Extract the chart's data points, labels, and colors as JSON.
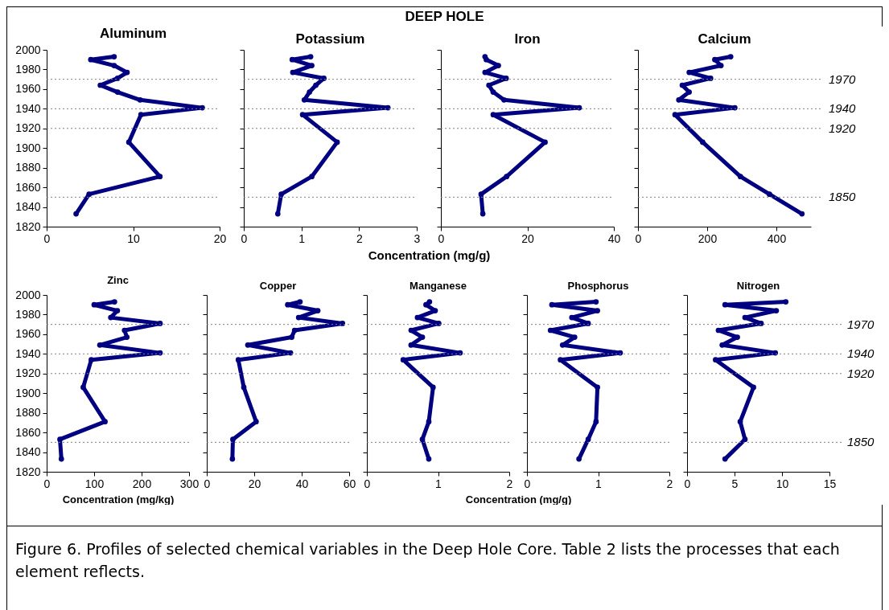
{
  "chart_data": [
    {
      "type": "line",
      "title": "Aluminum",
      "annotations": [
        "DEEP HOLE"
      ],
      "x": [
        7.8,
        5.1,
        7.8,
        9.3,
        8.2,
        6.2,
        8.2,
        10.8,
        18,
        10.9,
        9.5,
        13.1,
        4.9,
        3.4
      ],
      "values": [
        1993,
        1990,
        1984,
        1977,
        1971,
        1964,
        1957,
        1949,
        1941,
        1934,
        1906,
        1871,
        1853,
        1833
      ],
      "color": "#000080",
      "marker": "circle",
      "xlim": [
        0,
        20
      ],
      "xticks": [
        0,
        10,
        20
      ],
      "ylim": [
        1820,
        2000
      ],
      "yticks": [
        1820,
        1840,
        1860,
        1880,
        1900,
        1920,
        1940,
        1960,
        1980,
        2000
      ],
      "ref_lines": [
        {
          "axis": "y",
          "value": 1970,
          "color": "#808080",
          "line_style": "dotted"
        },
        {
          "axis": "y",
          "value": 1940,
          "color": "#808080",
          "line_style": "dotted"
        },
        {
          "axis": "y",
          "value": 1920,
          "color": "#808080",
          "line_style": "dotted"
        },
        {
          "axis": "y",
          "value": 1850,
          "color": "#808080",
          "line_style": "dotted"
        }
      ]
    },
    {
      "type": "line",
      "title": "Potassium",
      "xlabel": "Concentration (mg/g)",
      "x": [
        1.16,
        0.84,
        1.18,
        0.85,
        1.39,
        1.25,
        1.14,
        1.05,
        2.5,
        1.02,
        1.62,
        1.18,
        0.65,
        0.59
      ],
      "values": [
        1993,
        1990,
        1984,
        1977,
        1971,
        1964,
        1957,
        1949,
        1941,
        1934,
        1906,
        1871,
        1853,
        1833
      ],
      "color": "#000080",
      "marker": "circle",
      "xlim": [
        0,
        3
      ],
      "xticks": [
        0,
        1,
        2,
        3
      ],
      "ylim": [
        1820,
        2000
      ],
      "yticks": [
        1820,
        1840,
        1860,
        1880,
        1900,
        1920,
        1940,
        1960,
        1980,
        2000
      ],
      "tick_labels": "x",
      "ref_lines": [
        {
          "axis": "y",
          "value": 1970,
          "color": "#808080",
          "line_style": "dotted"
        },
        {
          "axis": "y",
          "value": 1940,
          "color": "#808080",
          "line_style": "dotted"
        },
        {
          "axis": "y",
          "value": 1920,
          "color": "#808080",
          "line_style": "dotted"
        },
        {
          "axis": "y",
          "value": 1850,
          "color": "#808080",
          "line_style": "dotted"
        }
      ]
    },
    {
      "type": "line",
      "title": "Iron",
      "x": [
        10.2,
        10.5,
        13.3,
        10.2,
        15.1,
        11.1,
        12.1,
        14.6,
        32,
        12.1,
        24.1,
        15.2,
        9.3,
        9.7
      ],
      "values": [
        1993,
        1990,
        1984,
        1977,
        1971,
        1964,
        1957,
        1949,
        1941,
        1934,
        1906,
        1871,
        1853,
        1833
      ],
      "color": "#000080",
      "marker": "circle",
      "xlim": [
        0,
        40
      ],
      "xticks": [
        0,
        20,
        40
      ],
      "ylim": [
        1820,
        2000
      ],
      "yticks": [
        1820,
        1840,
        1860,
        1880,
        1900,
        1920,
        1940,
        1960,
        1980,
        2000
      ],
      "tick_labels": "x",
      "ref_lines": [
        {
          "axis": "y",
          "value": 1970,
          "color": "#808080",
          "line_style": "dotted"
        },
        {
          "axis": "y",
          "value": 1940,
          "color": "#808080",
          "line_style": "dotted"
        },
        {
          "axis": "y",
          "value": 1920,
          "color": "#808080",
          "line_style": "dotted"
        },
        {
          "axis": "y",
          "value": 1850,
          "color": "#808080",
          "line_style": "dotted"
        }
      ]
    },
    {
      "type": "line",
      "title": "Calcium",
      "x": [
        268,
        222,
        240,
        148,
        210,
        128,
        148,
        118,
        280,
        107,
        187,
        296,
        380,
        474
      ],
      "values": [
        1993,
        1990,
        1984,
        1977,
        1971,
        1964,
        1957,
        1949,
        1941,
        1934,
        1906,
        1871,
        1853,
        1833
      ],
      "color": "#000080",
      "marker": "circle",
      "xlim": [
        0,
        500
      ],
      "xticks": [
        0,
        200,
        400
      ],
      "ylim": [
        1820,
        2000
      ],
      "yticks": [
        1820,
        1840,
        1860,
        1880,
        1900,
        1920,
        1940,
        1960,
        1980,
        2000
      ],
      "tick_labels": "x",
      "ref_lines": [
        {
          "axis": "y",
          "value": 1970,
          "label": "1970",
          "color": "#808080",
          "line_style": "dotted"
        },
        {
          "axis": "y",
          "value": 1940,
          "label": "1940",
          "color": "#808080",
          "line_style": "dotted"
        },
        {
          "axis": "y",
          "value": 1920,
          "label": "1920",
          "color": "#808080",
          "line_style": "dotted"
        },
        {
          "axis": "y",
          "value": 1850,
          "label": "1850",
          "color": "#808080",
          "line_style": "dotted"
        }
      ]
    },
    {
      "type": "line",
      "title": "Zinc",
      "xlabel": "Concentration (mg/kg)",
      "x": [
        143,
        100,
        149,
        135,
        239,
        164,
        169,
        112,
        239,
        94,
        77,
        123,
        28,
        31
      ],
      "values": [
        1993,
        1990,
        1984,
        1977,
        1971,
        1964,
        1957,
        1949,
        1941,
        1934,
        1906,
        1871,
        1853,
        1833
      ],
      "color": "#000080",
      "marker": "circle",
      "xlim": [
        0,
        300
      ],
      "xticks": [
        0,
        100,
        200,
        300
      ],
      "ylim": [
        1820,
        2000
      ],
      "yticks": [
        1820,
        1840,
        1860,
        1880,
        1900,
        1920,
        1940,
        1960,
        1980,
        2000
      ],
      "ref_lines": [
        {
          "axis": "y",
          "value": 1970,
          "color": "#808080",
          "line_style": "dotted"
        },
        {
          "axis": "y",
          "value": 1940,
          "color": "#808080",
          "line_style": "dotted"
        },
        {
          "axis": "y",
          "value": 1920,
          "color": "#808080",
          "line_style": "dotted"
        },
        {
          "axis": "y",
          "value": 1850,
          "color": "#808080",
          "line_style": "dotted"
        }
      ]
    },
    {
      "type": "line",
      "title": "Copper",
      "x": [
        39.3,
        34.1,
        46.8,
        38.7,
        57.2,
        37,
        35.8,
        17.3,
        35.3,
        13.3,
        15.6,
        20.8,
        11,
        10.8
      ],
      "values": [
        1993,
        1990,
        1984,
        1977,
        1971,
        1964,
        1957,
        1949,
        1941,
        1934,
        1906,
        1871,
        1853,
        1833
      ],
      "color": "#000080",
      "marker": "circle",
      "xlim": [
        0,
        60
      ],
      "xticks": [
        0,
        20,
        40,
        60
      ],
      "ylim": [
        1820,
        2000
      ],
      "yticks": [
        1820,
        1840,
        1860,
        1880,
        1900,
        1920,
        1940,
        1960,
        1980,
        2000
      ],
      "tick_labels": "x",
      "ref_lines": [
        {
          "axis": "y",
          "value": 1970,
          "color": "#808080",
          "line_style": "dotted"
        },
        {
          "axis": "y",
          "value": 1940,
          "color": "#808080",
          "line_style": "dotted"
        },
        {
          "axis": "y",
          "value": 1920,
          "color": "#808080",
          "line_style": "dotted"
        },
        {
          "axis": "y",
          "value": 1850,
          "color": "#808080",
          "line_style": "dotted"
        }
      ]
    },
    {
      "type": "line",
      "title": "Manganese",
      "xlabel": "Concentration (mg/g)",
      "x": [
        0.88,
        0.83,
        0.96,
        0.71,
        1.01,
        0.62,
        0.78,
        0.62,
        1.31,
        0.51,
        0.93,
        0.87,
        0.78,
        0.87
      ],
      "values": [
        1993,
        1990,
        1984,
        1977,
        1971,
        1964,
        1957,
        1949,
        1941,
        1934,
        1906,
        1871,
        1853,
        1833
      ],
      "color": "#000080",
      "marker": "circle",
      "xlim": [
        0,
        2
      ],
      "xticks": [
        0,
        1,
        2
      ],
      "ylim": [
        1820,
        2000
      ],
      "yticks": [
        1820,
        1840,
        1860,
        1880,
        1900,
        1920,
        1940,
        1960,
        1980,
        2000
      ],
      "tick_labels": "x",
      "ref_lines": [
        {
          "axis": "y",
          "value": 1970,
          "color": "#808080",
          "line_style": "dotted"
        },
        {
          "axis": "y",
          "value": 1940,
          "color": "#808080",
          "line_style": "dotted"
        },
        {
          "axis": "y",
          "value": 1920,
          "color": "#808080",
          "line_style": "dotted"
        },
        {
          "axis": "y",
          "value": 1850,
          "color": "#808080",
          "line_style": "dotted"
        }
      ]
    },
    {
      "type": "line",
      "title": "Phosphorus",
      "x": [
        0.97,
        0.35,
        0.99,
        0.63,
        0.86,
        0.33,
        0.67,
        0.5,
        1.31,
        0.47,
        0.99,
        0.97,
        0.86,
        0.73
      ],
      "values": [
        1993,
        1990,
        1984,
        1977,
        1971,
        1964,
        1957,
        1949,
        1941,
        1934,
        1906,
        1871,
        1853,
        1833
      ],
      "color": "#000080",
      "marker": "circle",
      "xlim": [
        0,
        2
      ],
      "xticks": [
        0,
        1,
        2
      ],
      "ylim": [
        1820,
        2000
      ],
      "yticks": [
        1820,
        1840,
        1860,
        1880,
        1900,
        1920,
        1940,
        1960,
        1980,
        2000
      ],
      "tick_labels": "x",
      "ref_lines": [
        {
          "axis": "y",
          "value": 1970,
          "color": "#808080",
          "line_style": "dotted"
        },
        {
          "axis": "y",
          "value": 1940,
          "color": "#808080",
          "line_style": "dotted"
        },
        {
          "axis": "y",
          "value": 1920,
          "color": "#808080",
          "line_style": "dotted"
        },
        {
          "axis": "y",
          "value": 1850,
          "color": "#808080",
          "line_style": "dotted"
        }
      ]
    },
    {
      "type": "line",
      "title": "Nitrogen",
      "annotations": [
        "Figure 6.  Profiles of selected chemical variables in the Deep Hole Core.  Table 2 lists the processes that each element reflects."
      ],
      "x": [
        10.4,
        4.0,
        9.4,
        6.1,
        7.8,
        3.3,
        5.3,
        3.7,
        9.3,
        3.0,
        7.0,
        5.6,
        6.1,
        4.0
      ],
      "values": [
        1993,
        1990,
        1984,
        1977,
        1971,
        1964,
        1957,
        1949,
        1941,
        1934,
        1906,
        1871,
        1853,
        1833
      ],
      "color": "#000080",
      "marker": "circle",
      "xlim": [
        0,
        15
      ],
      "xticks": [
        0,
        5,
        10,
        15
      ],
      "ylim": [
        1820,
        2000
      ],
      "yticks": [
        1820,
        1840,
        1860,
        1880,
        1900,
        1920,
        1940,
        1960,
        1980,
        2000
      ],
      "tick_labels": "x",
      "ref_lines": [
        {
          "axis": "y",
          "value": 1970,
          "label": "1970",
          "color": "#808080",
          "line_style": "dotted"
        },
        {
          "axis": "y",
          "value": 1940,
          "label": "1940",
          "color": "#808080",
          "line_style": "dotted"
        },
        {
          "axis": "y",
          "value": 1920,
          "label": "1920",
          "color": "#808080",
          "line_style": "dotted"
        },
        {
          "axis": "y",
          "value": 1850,
          "label": "1850",
          "color": "#808080",
          "line_style": "dotted"
        }
      ]
    }
  ]
}
